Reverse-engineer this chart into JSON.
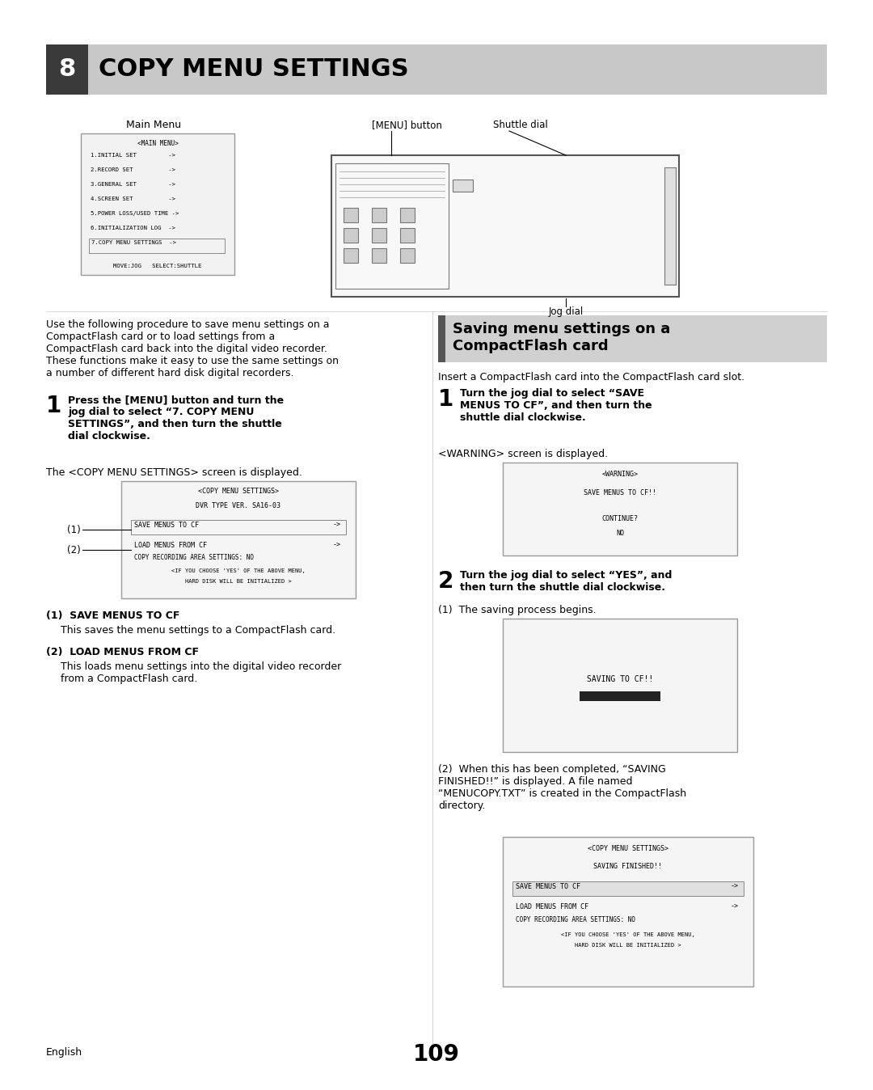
{
  "title": "COPY MENU SETTINGS",
  "chapter_num": "8",
  "bg_color": "#ffffff",
  "header_bg": "#c8c8c8",
  "header_dark": "#3a3a3a",
  "page_number": "109",
  "page_label": "English",
  "main_menu_title": "Main Menu",
  "intro_text": "Use the following procedure to save menu settings on a\nCompactFlash card or to load settings from a\nCompactFlash card back into the digital video recorder.\nThese functions make it easy to use the same settings on\na number of different hard disk digital recorders.",
  "step1_text": "Press the [MENU] button and turn the\njog dial to select “7. COPY MENU\nSETTINGS”, and then turn the shuttle\ndial clockwise.",
  "step1_sub": "The <COPY MENU SETTINGS> screen is displayed.",
  "sub1_title": "(1)  SAVE MENUS TO CF",
  "sub1_body": "This saves the menu settings to a CompactFlash card.",
  "sub2_title": "(2)  LOAD MENUS FROM CF",
  "sub2_body": "This loads menu settings into the digital video recorder\nfrom a CompactFlash card.",
  "right_section_title": "Saving menu settings on a\nCompactFlash card",
  "insert_text": "Insert a CompactFlash card into the CompactFlash card slot.",
  "right_step1_text": "Turn the jog dial to select “SAVE\nMENUS TO CF”, and then turn the\nshuttle dial clockwise.",
  "right_step1_sub": "<WARNING> screen is displayed.",
  "right_step2_text": "Turn the jog dial to select “YES”, and\nthen turn the shuttle dial clockwise.",
  "right_step2_sub1": "(1)  The saving process begins.",
  "right_step2_sub2": "(2)  When this has been completed, “SAVING\nFINISHED!!” is displayed. A file named\n“MENUCOPY.TXT” is created in the CompactFlash\ndirectory."
}
